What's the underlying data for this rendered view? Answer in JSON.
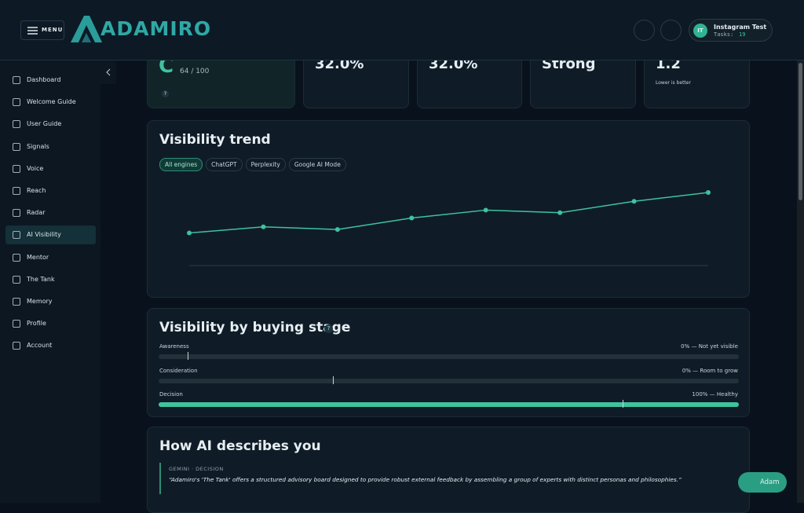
{
  "header": {
    "menu_label": "MENU",
    "logo": "ADAMIRO",
    "user": {
      "initials": "IT",
      "name": "Instagram Test",
      "tasks_label": "Tasks:",
      "tasks": "19"
    }
  },
  "sidebar": {
    "items": [
      "Dashboard",
      "Welcome Guide",
      "User Guide",
      "Signals",
      "Voice",
      "Reach",
      "Radar",
      "AI Visibility",
      "Mentor",
      "The Tank",
      "Memory",
      "Profile",
      "Account"
    ],
    "active_index": 7
  },
  "stat_cards": [
    {
      "grade": "C",
      "score": "64 / 100",
      "help": "?"
    },
    {
      "value": "32.0%"
    },
    {
      "value": "32.0%"
    },
    {
      "value": "Strong"
    },
    {
      "value": "1.2",
      "note": "Lower is better"
    }
  ],
  "visibility_trend": {
    "title": "Visibility trend",
    "tabs": [
      "All engines",
      "ChatGPT",
      "Perplexity",
      "Google AI Mode"
    ],
    "active_tab": 0,
    "chart": {
      "type": "line",
      "values": [
        37,
        44,
        41,
        54,
        63,
        60,
        73,
        83
      ],
      "ylim": [
        0,
        100
      ],
      "color": "#3fc2a0"
    }
  },
  "buying_stage": {
    "title": "Visibility by buying stage",
    "help": "?",
    "stages": [
      {
        "name": "Awareness",
        "label": "0% — Not yet visible",
        "value": 0,
        "marker": 5
      },
      {
        "name": "Consideration",
        "label": "0% — Room to grow",
        "value": 0,
        "marker": 30
      },
      {
        "name": "Decision",
        "label": "100% — Healthy",
        "value": 100,
        "marker": 80
      }
    ],
    "color": "#3fc2a0"
  },
  "ai_descriptions": {
    "title": "How AI describes you",
    "quotes": [
      {
        "source": "GEMINI · DECISION",
        "text": "“Adamiro's 'The Tank' offers a structured advisory board designed to provide robust external feedback by assembling a group of experts with distinct personas and philosophies.”"
      }
    ]
  },
  "assistant_button": "Adam"
}
